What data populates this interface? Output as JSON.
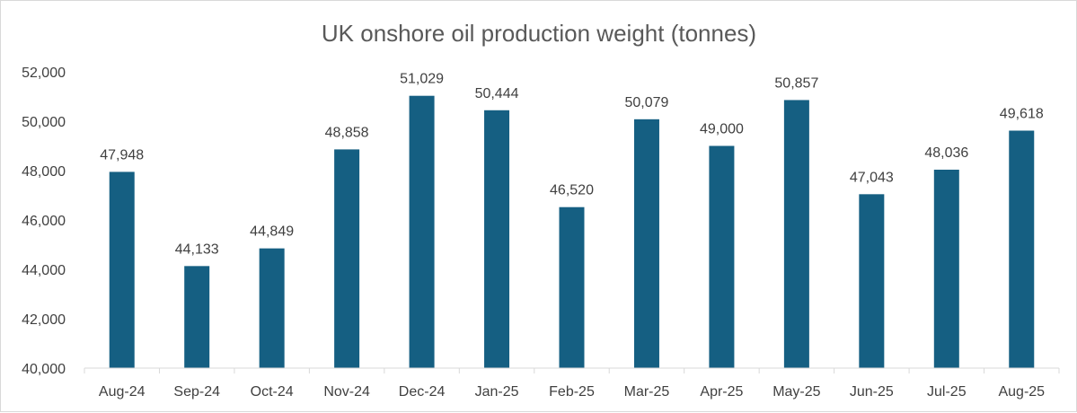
{
  "chart_data": {
    "type": "bar",
    "title": "UK onshore oil production weight (tonnes)",
    "xlabel": "",
    "ylabel": "",
    "categories": [
      "Aug-24",
      "Sep-24",
      "Oct-24",
      "Nov-24",
      "Dec-24",
      "Jan-25",
      "Feb-25",
      "Mar-25",
      "Apr-25",
      "May-25",
      "Jun-25",
      "Jul-25",
      "Aug-25"
    ],
    "values": [
      47948,
      44133,
      44849,
      48858,
      51029,
      50444,
      46520,
      50079,
      49000,
      50857,
      47043,
      48036,
      49618
    ],
    "value_labels": [
      "47,948",
      "44,133",
      "44,849",
      "48,858",
      "51,029",
      "50,444",
      "46,520",
      "50,079",
      "49,000",
      "50,857",
      "47,043",
      "48,036",
      "49,618"
    ],
    "ylim": [
      40000,
      52000
    ],
    "yticks": [
      40000,
      42000,
      44000,
      46000,
      48000,
      50000,
      52000
    ],
    "ytick_labels": [
      "40,000",
      "42,000",
      "44,000",
      "46,000",
      "48,000",
      "50,000",
      "52,000"
    ],
    "grid": false,
    "legend": "none",
    "bar_color": "#155f82"
  }
}
